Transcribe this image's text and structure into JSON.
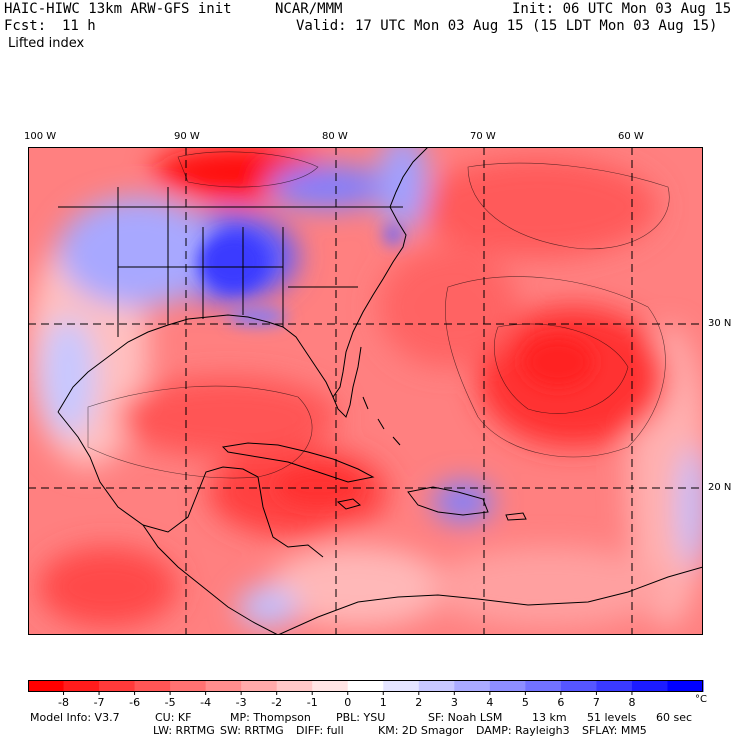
{
  "header": {
    "model_title": "HAIC-HIWC 13km ARW-GFS init",
    "org": "NCAR/MMM",
    "init": "Init: 06 UTC Mon 03 Aug 15",
    "fcst_label": "Fcst:",
    "fcst_value": "11 h",
    "valid": "Valid: 17 UTC Mon 03 Aug 15 (15 LDT Mon 03 Aug 15)",
    "field": "Lifted index"
  },
  "map": {
    "lon_labels": [
      "100 W",
      "90 W",
      "80 W",
      "70 W",
      "60 W"
    ],
    "lat_labels": [
      "30 N",
      "20 N"
    ]
  },
  "colorbar": {
    "ticks": [
      "-8",
      "-7",
      "-6",
      "-5",
      "-4",
      "-3",
      "-2",
      "-1",
      "0",
      "1",
      "2",
      "3",
      "4",
      "5",
      "6",
      "7",
      "8"
    ],
    "unit": "°C",
    "colors": [
      "#ff0000",
      "#ff1c1c",
      "#ff3a3a",
      "#ff5656",
      "#ff7272",
      "#ff8e8e",
      "#ffabab",
      "#ffc8c8",
      "#ffe4e4",
      "#ffffff",
      "#e4e4ff",
      "#c8c8ff",
      "#ababff",
      "#8e8eff",
      "#7272ff",
      "#5656ff",
      "#3a3aff",
      "#1c1cff",
      "#0000ff"
    ]
  },
  "model_info": {
    "line1": [
      "Model Info: V3.7",
      "CU: KF",
      "MP: Thompson",
      "PBL: YSU",
      "SF: Noah LSM",
      "13 km",
      "51 levels",
      "60 sec"
    ],
    "line2": [
      "LW: RRTMG",
      "SW: RRTMG",
      "DIFF: full",
      "KM: 2D Smagor",
      "DAMP: Rayleigh3",
      "SFLAY: MM5"
    ]
  }
}
